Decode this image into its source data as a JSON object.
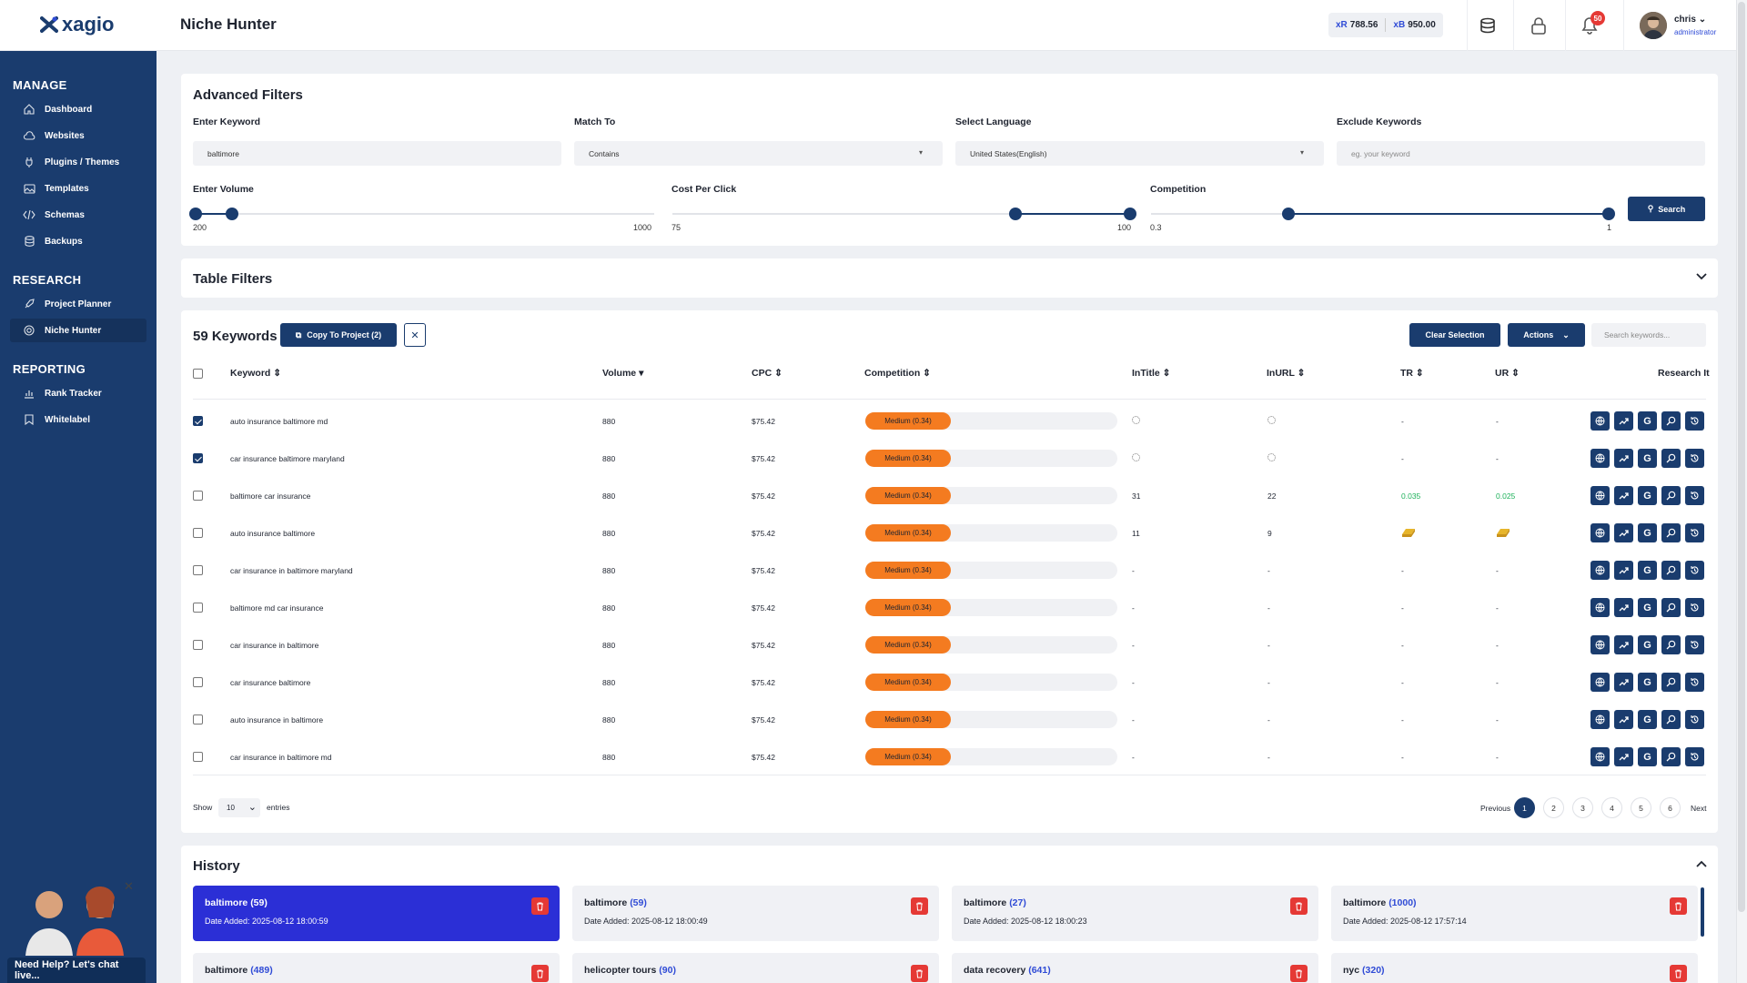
{
  "header": {
    "logo": "xagio",
    "title": "Niche Hunter",
    "credits": [
      {
        "currency": "xR",
        "amount": "788.56"
      },
      {
        "currency": "xB",
        "amount": "950.00"
      }
    ],
    "notifications_count": "50",
    "user": {
      "name": "chris",
      "role": "administrator"
    },
    "icons": [
      "coins-icon",
      "lock-icon",
      "bell-icon"
    ]
  },
  "sidebar": {
    "sections": [
      {
        "title": "MANAGE",
        "items": [
          {
            "label": "Dashboard",
            "icon": "home-icon"
          },
          {
            "label": "Websites",
            "icon": "cloud-icon"
          },
          {
            "label": "Plugins / Themes",
            "icon": "plug-icon"
          },
          {
            "label": "Templates",
            "icon": "image-icon"
          },
          {
            "label": "Schemas",
            "icon": "code-icon"
          },
          {
            "label": "Backups",
            "icon": "database-icon"
          }
        ]
      },
      {
        "title": "RESEARCH",
        "items": [
          {
            "label": "Project Planner",
            "icon": "rocket-icon"
          },
          {
            "label": "Niche Hunter",
            "icon": "target-icon",
            "active": true
          }
        ]
      },
      {
        "title": "REPORTING",
        "items": [
          {
            "label": "Rank Tracker",
            "icon": "chart-icon"
          },
          {
            "label": "Whitelabel",
            "icon": "bookmark-icon"
          }
        ]
      }
    ],
    "help_text": "Need Help? Let's chat live..."
  },
  "advanced_filters": {
    "title": "Advanced Filters",
    "keyword": {
      "label": "Enter Keyword",
      "value": "baltimore"
    },
    "match_to": {
      "label": "Match To",
      "value": "Contains"
    },
    "language": {
      "label": "Select Language",
      "value": "United States(English)"
    },
    "exclude": {
      "label": "Exclude Keywords",
      "placeholder": "eg. your keyword"
    },
    "volume": {
      "label": "Enter Volume",
      "min": "200",
      "max": "1000",
      "low": 200,
      "high": 1000,
      "range_min": 0,
      "range_max": 5000
    },
    "cpc": {
      "label": "Cost Per Click",
      "min": "75",
      "max": "100",
      "low": 75,
      "high": 100,
      "range_min": 0,
      "range_max": 100
    },
    "competition": {
      "label": "Competition",
      "min": "0.3",
      "max": "1",
      "low": 0.3,
      "high": 1,
      "range_min": 0,
      "range_max": 1
    },
    "search_button": "Search"
  },
  "table_filters": {
    "title": "Table Filters"
  },
  "keywords": {
    "count_title": "59 Keywords",
    "copy_button": "Copy To Project (2)",
    "clear_button": "Clear Selection",
    "actions_button": "Actions",
    "search_placeholder": "Search keywords...",
    "columns": [
      "Keyword",
      "Volume",
      "CPC",
      "Competition",
      "InTitle",
      "InURL",
      "TR",
      "UR",
      "Research It"
    ],
    "rows": [
      {
        "checked": true,
        "keyword": "auto insurance baltimore md",
        "volume": "880",
        "cpc": "$75.42",
        "competition": "Medium (0.34)",
        "intitle": "",
        "inurl": "",
        "tr": "-",
        "ur": "-",
        "loading": true
      },
      {
        "checked": true,
        "keyword": "car insurance baltimore maryland",
        "volume": "880",
        "cpc": "$75.42",
        "competition": "Medium (0.34)",
        "intitle": "",
        "inurl": "",
        "tr": "-",
        "ur": "-",
        "loading": true
      },
      {
        "checked": false,
        "keyword": "baltimore car insurance",
        "volume": "880",
        "cpc": "$75.42",
        "competition": "Medium (0.34)",
        "intitle": "31",
        "inurl": "22",
        "tr": "0.035",
        "ur": "0.025"
      },
      {
        "checked": false,
        "keyword": "auto insurance baltimore",
        "volume": "880",
        "cpc": "$75.42",
        "competition": "Medium (0.34)",
        "intitle": "11",
        "inurl": "9",
        "tr": "",
        "ur": "",
        "gold": true
      },
      {
        "checked": false,
        "keyword": "car insurance in baltimore maryland",
        "volume": "880",
        "cpc": "$75.42",
        "competition": "Medium (0.34)",
        "intitle": "-",
        "inurl": "-",
        "tr": "-",
        "ur": "-"
      },
      {
        "checked": false,
        "keyword": "baltimore md car insurance",
        "volume": "880",
        "cpc": "$75.42",
        "competition": "Medium (0.34)",
        "intitle": "-",
        "inurl": "-",
        "tr": "-",
        "ur": "-"
      },
      {
        "checked": false,
        "keyword": "car insurance in baltimore",
        "volume": "880",
        "cpc": "$75.42",
        "competition": "Medium (0.34)",
        "intitle": "-",
        "inurl": "-",
        "tr": "-",
        "ur": "-"
      },
      {
        "checked": false,
        "keyword": "car insurance baltimore",
        "volume": "880",
        "cpc": "$75.42",
        "competition": "Medium (0.34)",
        "intitle": "-",
        "inurl": "-",
        "tr": "-",
        "ur": "-"
      },
      {
        "checked": false,
        "keyword": "auto insurance in baltimore",
        "volume": "880",
        "cpc": "$75.42",
        "competition": "Medium (0.34)",
        "intitle": "-",
        "inurl": "-",
        "tr": "-",
        "ur": "-"
      },
      {
        "checked": false,
        "keyword": "car insurance in baltimore md",
        "volume": "880",
        "cpc": "$75.42",
        "competition": "Medium (0.34)",
        "intitle": "-",
        "inurl": "-",
        "tr": "-",
        "ur": "-"
      }
    ],
    "show_label": "Show",
    "entries_value": "10",
    "entries_label": "entries",
    "pagination": {
      "previous": "Previous",
      "pages": [
        "1",
        "2",
        "3",
        "4",
        "5",
        "6"
      ],
      "current": "1",
      "next": "Next"
    }
  },
  "history": {
    "title": "History",
    "items": [
      {
        "name": "baltimore",
        "count": "(59)",
        "date": "Date Added: 2025-08-12 18:00:59",
        "active": true
      },
      {
        "name": "baltimore",
        "count": "(59)",
        "date": "Date Added: 2025-08-12 18:00:49"
      },
      {
        "name": "baltimore",
        "count": "(27)",
        "date": "Date Added: 2025-08-12 18:00:23"
      },
      {
        "name": "baltimore",
        "count": "(1000)",
        "date": "Date Added: 2025-08-12 17:57:14"
      },
      {
        "name": "baltimore",
        "count": "(489)",
        "date": ""
      },
      {
        "name": "helicopter tours",
        "count": "(90)",
        "date": ""
      },
      {
        "name": "data recovery",
        "count": "(641)",
        "date": ""
      },
      {
        "name": "nyc",
        "count": "(320)",
        "date": ""
      }
    ]
  },
  "colors": {
    "brand": "#1a3c6e",
    "accent": "#2f4bd6",
    "competition": "#f47b20",
    "danger": "#e53935",
    "positive": "#1db15a"
  }
}
